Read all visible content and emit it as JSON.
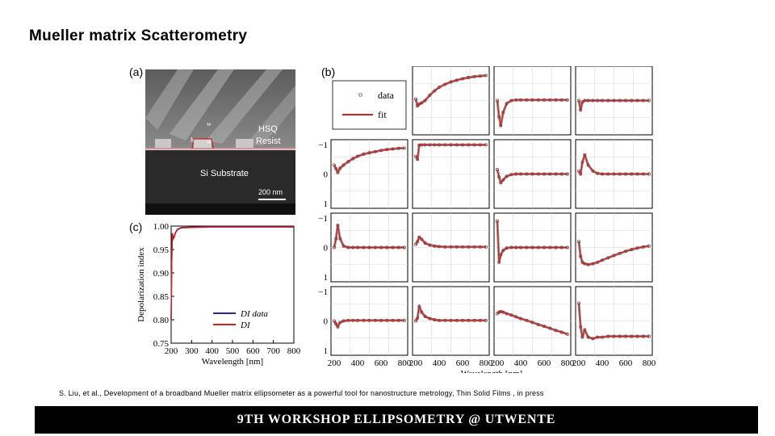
{
  "slide": {
    "title": "Mueller matrix Scatterometry",
    "citation": "S. Liu, et al., Development of a broadband Mueller matrix ellipsometer as a powerful tool for nanostructure metrology, Thin Solid Films , in press",
    "footer": "9TH WORKSHOP ELLIPSOMETRY @ UTWENTE"
  },
  "figure": {
    "panel_a": {
      "letter": "(a)",
      "labels": [
        "HSQ",
        "Resist",
        "Si Substrate",
        "200 nm"
      ],
      "dim_labels": [
        "w",
        "h",
        "w"
      ]
    },
    "panel_b": {
      "letter": "(b)",
      "legend": [
        "data",
        "fit"
      ],
      "marker": "o"
    },
    "panel_c": {
      "letter": "(c)",
      "legend": [
        "DI data",
        "DI"
      ]
    },
    "colors": {
      "data": "#7a3030",
      "fit": "#cc2222",
      "di_data": "#2a2a8a",
      "di_fit": "#cc2222"
    }
  },
  "chart_data": [
    {
      "type": "line",
      "panel": "(c)",
      "xlabel": "Wavelength [nm]",
      "ylabel": "Depolarization index",
      "xlim": [
        200,
        800
      ],
      "ylim": [
        0.75,
        1.0
      ],
      "xticks": [
        "200",
        "300",
        "400",
        "500",
        "600",
        "700",
        "800"
      ],
      "yticks": [
        "0.75",
        "0.80",
        "0.85",
        "0.90",
        "0.95",
        "1.00"
      ],
      "series": [
        {
          "name": "DI data",
          "x": [
            200,
            203,
            206,
            210,
            215,
            220,
            230,
            250,
            300,
            400,
            500,
            600,
            700,
            800
          ],
          "y": [
            0.8,
            0.93,
            0.985,
            0.975,
            0.978,
            0.985,
            0.993,
            0.997,
            0.998,
            0.999,
            0.999,
            0.999,
            0.999,
            0.999
          ]
        },
        {
          "name": "DI",
          "x": [
            200,
            203,
            206,
            210,
            215,
            220,
            230,
            250,
            300,
            400,
            500,
            600,
            700,
            800
          ],
          "y": [
            0.8,
            0.93,
            0.985,
            0.972,
            0.976,
            0.984,
            0.992,
            0.996,
            0.997,
            0.998,
            0.998,
            0.998,
            0.998,
            0.998
          ]
        }
      ]
    },
    {
      "type": "line",
      "panel": "(b)",
      "xlabel": "Wavelength [nm]",
      "xlim": [
        200,
        800
      ],
      "ylim": [
        -1,
        1
      ],
      "xticks": [
        "200",
        "400",
        "600",
        "800"
      ],
      "yticks": [
        "−1",
        "0",
        "1"
      ],
      "x": [
        200,
        215,
        230,
        250,
        280,
        320,
        360,
        400,
        450,
        500,
        550,
        600,
        650,
        700,
        750,
        800
      ],
      "cells": [
        {
          "row": 0,
          "col": 1,
          "y": [
            0.05,
            -0.18,
            -0.12,
            -0.08,
            0.0,
            0.18,
            0.33,
            0.45,
            0.55,
            0.63,
            0.69,
            0.74,
            0.78,
            0.81,
            0.83,
            0.85
          ]
        },
        {
          "row": 0,
          "col": 2,
          "y": [
            0.0,
            -0.55,
            -0.85,
            -0.4,
            -0.1,
            0.0,
            0.02,
            0.02,
            0.02,
            0.02,
            0.02,
            0.02,
            0.02,
            0.02,
            0.02,
            0.02
          ]
        },
        {
          "row": 0,
          "col": 3,
          "y": [
            0.0,
            -0.32,
            -0.05,
            0.0,
            0.0,
            0.0,
            0.0,
            0.0,
            0.0,
            0.0,
            0.0,
            0.0,
            0.0,
            0.0,
            0.0,
            0.0
          ]
        },
        {
          "row": 1,
          "col": 0,
          "y": [
            0.3,
            0.18,
            0.05,
            0.2,
            0.3,
            0.42,
            0.52,
            0.6,
            0.67,
            0.72,
            0.76,
            0.8,
            0.83,
            0.85,
            0.87,
            0.88
          ]
        },
        {
          "row": 1,
          "col": 1,
          "y": [
            0.6,
            0.5,
            0.98,
            0.99,
            0.99,
            0.99,
            0.99,
            0.99,
            0.99,
            0.99,
            0.99,
            0.99,
            0.99,
            0.99,
            0.99,
            0.99
          ]
        },
        {
          "row": 1,
          "col": 2,
          "y": [
            0.15,
            -0.1,
            -0.3,
            -0.2,
            -0.08,
            -0.02,
            0.0,
            0.0,
            0.0,
            0.0,
            0.0,
            0.0,
            0.0,
            0.0,
            0.0,
            0.0
          ]
        },
        {
          "row": 1,
          "col": 3,
          "y": [
            0.1,
            0.0,
            0.4,
            0.65,
            0.3,
            0.1,
            0.02,
            0.0,
            0.0,
            0.0,
            0.0,
            0.0,
            0.0,
            0.0,
            0.0,
            0.0
          ]
        },
        {
          "row": 2,
          "col": 0,
          "y": [
            0.0,
            0.3,
            0.75,
            0.3,
            0.05,
            0.0,
            0.0,
            0.0,
            0.0,
            0.0,
            0.0,
            0.0,
            0.0,
            0.0,
            0.0,
            0.0
          ]
        },
        {
          "row": 2,
          "col": 1,
          "y": [
            0.1,
            0.2,
            0.35,
            0.28,
            0.15,
            0.08,
            0.05,
            0.03,
            0.02,
            0.02,
            0.02,
            0.02,
            0.02,
            0.02,
            0.02,
            0.02
          ]
        },
        {
          "row": 2,
          "col": 2,
          "y": [
            0.9,
            -0.5,
            -0.25,
            -0.1,
            -0.02,
            0.0,
            0.0,
            0.0,
            0.0,
            0.0,
            0.0,
            0.0,
            0.0,
            0.0,
            0.0,
            0.0
          ]
        },
        {
          "row": 2,
          "col": 3,
          "y": [
            0.2,
            -0.3,
            -0.5,
            -0.55,
            -0.58,
            -0.55,
            -0.5,
            -0.43,
            -0.35,
            -0.27,
            -0.2,
            -0.13,
            -0.07,
            -0.02,
            0.02,
            0.05
          ]
        },
        {
          "row": 3,
          "col": 0,
          "y": [
            0.0,
            -0.1,
            -0.2,
            -0.05,
            0.0,
            0.02,
            0.02,
            0.02,
            0.02,
            0.02,
            0.02,
            0.02,
            0.02,
            0.02,
            0.02,
            0.02
          ]
        },
        {
          "row": 3,
          "col": 1,
          "y": [
            0.0,
            0.1,
            0.5,
            0.3,
            0.15,
            0.08,
            0.04,
            0.02,
            0.02,
            0.02,
            0.02,
            0.02,
            0.02,
            0.02,
            0.02,
            0.02
          ]
        },
        {
          "row": 3,
          "col": 2,
          "y": [
            0.25,
            0.3,
            0.32,
            0.3,
            0.25,
            0.2,
            0.14,
            0.08,
            0.02,
            -0.05,
            -0.12,
            -0.18,
            -0.25,
            -0.32,
            -0.38,
            -0.45
          ]
        },
        {
          "row": 3,
          "col": 3,
          "y": [
            0.6,
            -0.2,
            -0.55,
            -0.3,
            -0.55,
            -0.6,
            -0.55,
            -0.55,
            -0.52,
            -0.52,
            -0.52,
            -0.52,
            -0.52,
            -0.52,
            -0.52,
            -0.52
          ]
        }
      ]
    }
  ]
}
